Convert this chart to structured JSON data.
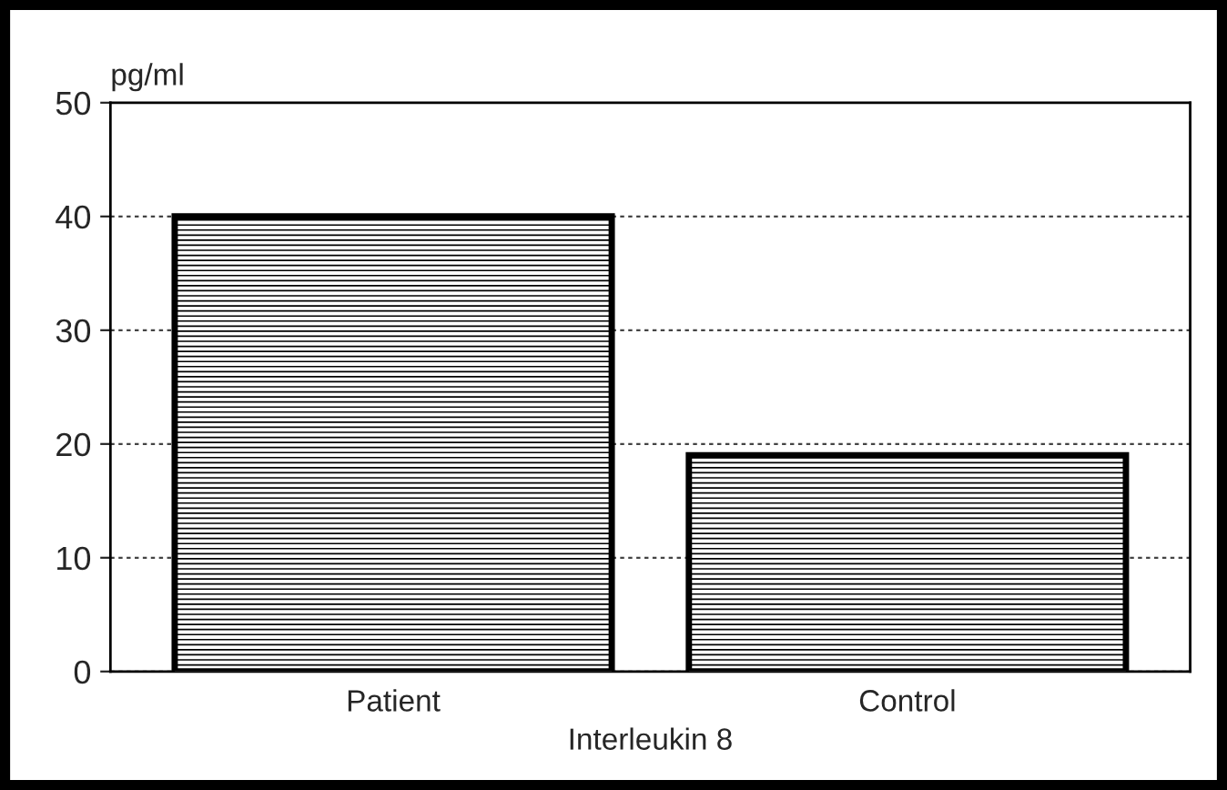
{
  "chart_data": {
    "type": "bar",
    "ylabel": "pg/ml",
    "xlabel": "Interleukin 8",
    "categories": [
      "Patient",
      "Control"
    ],
    "values": [
      40,
      19
    ],
    "color": "#000000",
    "ylim": [
      0,
      50
    ],
    "yticks": [
      0,
      10,
      20,
      30,
      40,
      50
    ],
    "grid": "y"
  }
}
